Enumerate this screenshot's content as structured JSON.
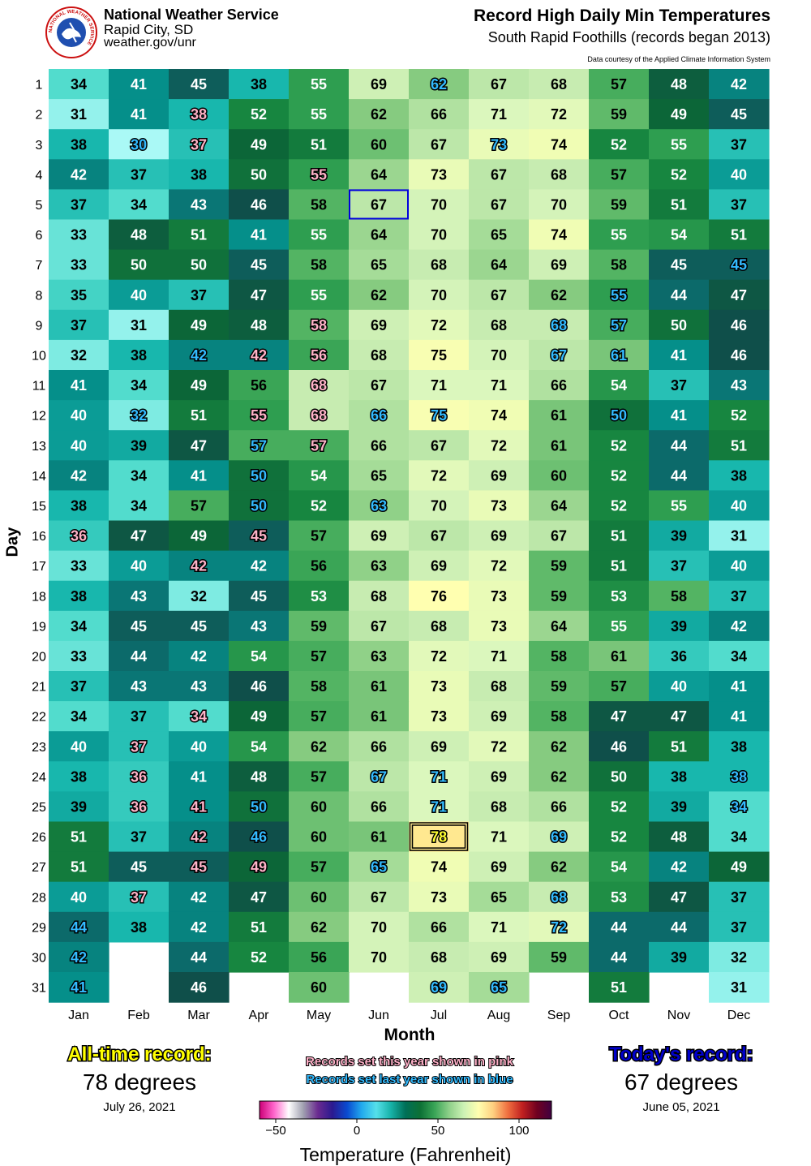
{
  "header": {
    "org_name": "National Weather Service",
    "org_office": "Rapid City, SD",
    "org_url": "weather.gov/unr",
    "logo_text": "NATIONAL WEATHER SERVICE",
    "title": "Record High Daily Min Temperatures",
    "subtitle": "South Rapid Foothills (records began 2013)",
    "credit": "Data courtesy of the Applied Climate Information System"
  },
  "chart_data": {
    "type": "heatmap",
    "xlabel": "Month",
    "ylabel": "Day",
    "months": [
      "Jan",
      "Feb",
      "Mar",
      "Apr",
      "May",
      "Jun",
      "Jul",
      "Aug",
      "Sep",
      "Oct",
      "Nov",
      "Dec"
    ],
    "days": [
      1,
      2,
      3,
      4,
      5,
      6,
      7,
      8,
      9,
      10,
      11,
      12,
      13,
      14,
      15,
      16,
      17,
      18,
      19,
      20,
      21,
      22,
      23,
      24,
      25,
      26,
      27,
      28,
      29,
      30,
      31
    ],
    "values": [
      [
        34,
        41,
        45,
        38,
        55,
        69,
        62,
        67,
        68,
        57,
        48,
        42
      ],
      [
        31,
        41,
        38,
        52,
        55,
        62,
        66,
        71,
        72,
        59,
        49,
        45
      ],
      [
        38,
        30,
        37,
        49,
        51,
        60,
        67,
        73,
        74,
        52,
        55,
        37
      ],
      [
        42,
        37,
        38,
        50,
        55,
        64,
        73,
        67,
        68,
        57,
        52,
        40
      ],
      [
        37,
        34,
        43,
        46,
        58,
        67,
        70,
        67,
        70,
        59,
        51,
        37
      ],
      [
        33,
        48,
        51,
        41,
        55,
        64,
        70,
        65,
        74,
        55,
        54,
        51
      ],
      [
        33,
        50,
        50,
        45,
        58,
        65,
        68,
        64,
        69,
        58,
        45,
        45
      ],
      [
        35,
        40,
        37,
        47,
        55,
        62,
        70,
        67,
        62,
        55,
        44,
        47
      ],
      [
        37,
        31,
        49,
        48,
        58,
        69,
        72,
        68,
        68,
        57,
        50,
        46
      ],
      [
        32,
        38,
        42,
        42,
        56,
        68,
        75,
        70,
        67,
        61,
        41,
        46
      ],
      [
        41,
        34,
        49,
        56,
        68,
        67,
        71,
        71,
        66,
        54,
        37,
        43
      ],
      [
        40,
        32,
        51,
        55,
        68,
        66,
        75,
        74,
        61,
        50,
        41,
        52
      ],
      [
        40,
        39,
        47,
        57,
        57,
        66,
        67,
        72,
        61,
        52,
        44,
        51
      ],
      [
        42,
        34,
        41,
        50,
        54,
        65,
        72,
        69,
        60,
        52,
        44,
        38
      ],
      [
        38,
        34,
        57,
        50,
        52,
        63,
        70,
        73,
        64,
        52,
        55,
        40
      ],
      [
        36,
        47,
        49,
        45,
        57,
        69,
        67,
        69,
        67,
        51,
        39,
        31
      ],
      [
        33,
        40,
        42,
        42,
        56,
        63,
        69,
        72,
        59,
        51,
        37,
        40
      ],
      [
        38,
        43,
        32,
        45,
        53,
        68,
        76,
        73,
        59,
        53,
        58,
        37
      ],
      [
        34,
        45,
        45,
        43,
        59,
        67,
        68,
        73,
        64,
        55,
        39,
        42
      ],
      [
        33,
        44,
        42,
        54,
        57,
        63,
        72,
        71,
        58,
        61,
        36,
        34
      ],
      [
        37,
        43,
        43,
        46,
        58,
        61,
        73,
        68,
        59,
        57,
        40,
        41
      ],
      [
        34,
        37,
        34,
        49,
        57,
        61,
        73,
        69,
        58,
        47,
        47,
        41
      ],
      [
        40,
        37,
        40,
        54,
        62,
        66,
        69,
        72,
        62,
        46,
        51,
        38
      ],
      [
        38,
        36,
        41,
        48,
        57,
        67,
        71,
        69,
        62,
        50,
        38,
        38
      ],
      [
        39,
        36,
        41,
        50,
        60,
        66,
        71,
        68,
        66,
        52,
        39,
        34
      ],
      [
        51,
        37,
        42,
        46,
        60,
        61,
        78,
        71,
        69,
        52,
        48,
        34
      ],
      [
        51,
        45,
        45,
        49,
        57,
        65,
        74,
        69,
        62,
        54,
        42,
        49
      ],
      [
        40,
        37,
        42,
        47,
        60,
        67,
        73,
        65,
        68,
        53,
        47,
        37
      ],
      [
        44,
        38,
        42,
        51,
        62,
        70,
        66,
        71,
        72,
        44,
        44,
        37
      ],
      [
        42,
        null,
        44,
        52,
        56,
        70,
        68,
        69,
        59,
        44,
        39,
        32
      ],
      [
        41,
        null,
        46,
        null,
        60,
        null,
        69,
        65,
        null,
        51,
        null,
        31
      ]
    ],
    "records_this_year_pink": [
      [
        2,
        "Mar"
      ],
      [
        3,
        "Mar"
      ],
      [
        4,
        "May"
      ],
      [
        9,
        "May"
      ],
      [
        10,
        "Apr"
      ],
      [
        10,
        "May"
      ],
      [
        11,
        "May"
      ],
      [
        12,
        "Apr"
      ],
      [
        12,
        "May"
      ],
      [
        13,
        "May"
      ],
      [
        16,
        "Jan"
      ],
      [
        16,
        "Apr"
      ],
      [
        17,
        "Mar"
      ],
      [
        22,
        "Mar"
      ],
      [
        23,
        "Feb"
      ],
      [
        24,
        "Feb"
      ],
      [
        25,
        "Feb"
      ],
      [
        25,
        "Mar"
      ],
      [
        26,
        "Mar"
      ],
      [
        27,
        "Mar"
      ],
      [
        27,
        "Apr"
      ],
      [
        28,
        "Feb"
      ]
    ],
    "records_last_year_blue": [
      [
        1,
        "Jul"
      ],
      [
        3,
        "Feb"
      ],
      [
        3,
        "Aug"
      ],
      [
        7,
        "Dec"
      ],
      [
        8,
        "Oct"
      ],
      [
        9,
        "Sep"
      ],
      [
        9,
        "Oct"
      ],
      [
        10,
        "Mar"
      ],
      [
        10,
        "Sep"
      ],
      [
        10,
        "Oct"
      ],
      [
        12,
        "Feb"
      ],
      [
        12,
        "Jun"
      ],
      [
        12,
        "Jul"
      ],
      [
        12,
        "Oct"
      ],
      [
        13,
        "Apr"
      ],
      [
        14,
        "Apr"
      ],
      [
        15,
        "Apr"
      ],
      [
        15,
        "Jun"
      ],
      [
        24,
        "Jun"
      ],
      [
        24,
        "Jul"
      ],
      [
        24,
        "Dec"
      ],
      [
        25,
        "Apr"
      ],
      [
        25,
        "Jul"
      ],
      [
        25,
        "Dec"
      ],
      [
        26,
        "Apr"
      ],
      [
        26,
        "Sep"
      ],
      [
        27,
        "Jun"
      ],
      [
        28,
        "Sep"
      ],
      [
        29,
        "Jan"
      ],
      [
        29,
        "Sep"
      ],
      [
        30,
        "Jan"
      ],
      [
        31,
        "Jan"
      ],
      [
        31,
        "Jul"
      ],
      [
        31,
        "Aug"
      ]
    ],
    "all_time_record_cell": [
      26,
      "Jul"
    ],
    "today_cell": [
      5,
      "Jun"
    ],
    "colorbar": {
      "title": "Temperature (Fahrenheit)",
      "ticks": [
        "−50",
        "0",
        "50",
        "100"
      ],
      "range": [
        -60,
        120
      ],
      "colors": [
        "#cc0077",
        "#ff66cc",
        "#ffffff",
        "#a0a0b0",
        "#6a2a90",
        "#2a1a90",
        "#0a4ad0",
        "#22aaee",
        "#55e0ea",
        "#17b2a8",
        "#006f57",
        "#0c7035",
        "#3aa557",
        "#8fd08a",
        "#cdf2b5",
        "#ffffb0",
        "#ffd080",
        "#f07040",
        "#c02020",
        "#700020",
        "#400040"
      ]
    }
  },
  "footer": {
    "all_time_label": "All-time record:",
    "all_time_value": "78 degrees",
    "all_time_date": "July 26, 2021",
    "note_pink": "Records set this year shown in pink",
    "note_blue": "Records set last year shown in blue",
    "today_label": "Today's record:",
    "today_value": "67 degrees",
    "today_date": "June 05, 2021"
  }
}
